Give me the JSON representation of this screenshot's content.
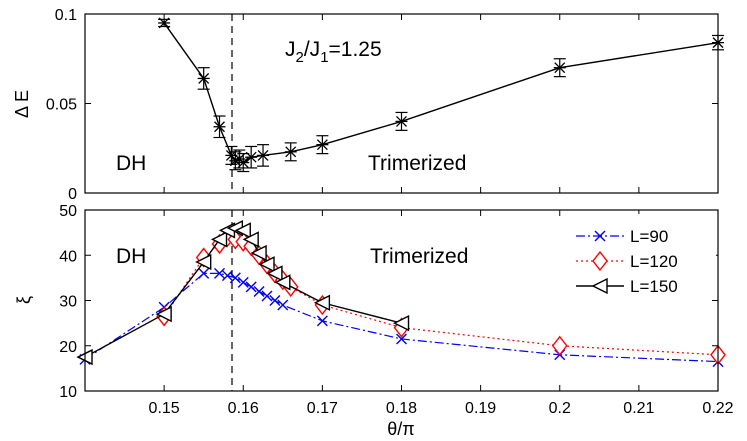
{
  "chart_data": [
    {
      "type": "line",
      "panel": "top",
      "ylabel": "Δ E",
      "ylim": [
        0,
        0.1
      ],
      "xlim": [
        0.14,
        0.22
      ],
      "yticks": [
        0,
        0.05,
        0.1
      ],
      "ytick_labels": [
        "0",
        "0.05",
        "0.1"
      ],
      "annotations": {
        "ratio": "J",
        "ratio_sub1": "2",
        "ratio_mid": "/J",
        "ratio_sub2": "1",
        "ratio_val": "=1.25",
        "left_region": "DH",
        "right_region": "Trimerized"
      },
      "vline_x": 0.159,
      "series": [
        {
          "name": "Delta E",
          "x": [
            0.15,
            0.155,
            0.157,
            0.1585,
            0.159,
            0.1595,
            0.16,
            0.161,
            0.1625,
            0.166,
            0.17,
            0.18,
            0.2,
            0.22
          ],
          "y": [
            0.095,
            0.064,
            0.037,
            0.021,
            0.018,
            0.019,
            0.017,
            0.02,
            0.021,
            0.023,
            0.027,
            0.04,
            0.07,
            0.084
          ],
          "err": [
            0.002,
            0.006,
            0.006,
            0.005,
            0.005,
            0.005,
            0.005,
            0.006,
            0.006,
            0.005,
            0.005,
            0.005,
            0.005,
            0.004
          ]
        }
      ]
    },
    {
      "type": "line",
      "panel": "bottom",
      "xlabel": "θ/π",
      "ylabel": "ξ",
      "xlim": [
        0.14,
        0.22
      ],
      "ylim": [
        10,
        50
      ],
      "xticks": [
        0.15,
        0.16,
        0.17,
        0.18,
        0.19,
        0.2,
        0.21,
        0.22
      ],
      "xtick_labels": [
        "0.15",
        "0.16",
        "0.17",
        "0.18",
        "0.19",
        "0.2",
        "0.21",
        "0.22"
      ],
      "yticks": [
        10,
        20,
        30,
        40,
        50
      ],
      "ytick_labels": [
        "10",
        "20",
        "30",
        "40",
        "50"
      ],
      "annotations": {
        "left_region": "DH",
        "right_region": "Trimerized"
      },
      "vline_x": 0.159,
      "legend_position": "top-right",
      "series": [
        {
          "name": "L=90",
          "color": "#0000ff",
          "x": [
            0.14,
            0.15,
            0.155,
            0.157,
            0.158,
            0.159,
            0.16,
            0.161,
            0.162,
            0.163,
            0.164,
            0.165,
            0.17,
            0.18,
            0.2,
            0.22
          ],
          "y": [
            17,
            28.5,
            36,
            36,
            35.5,
            35,
            34,
            33,
            32,
            31,
            30,
            29,
            25.5,
            21.5,
            18,
            16.5
          ]
        },
        {
          "name": "L=120",
          "color": "#ff0000",
          "x": [
            0.15,
            0.155,
            0.157,
            0.158,
            0.159,
            0.16,
            0.161,
            0.162,
            0.163,
            0.164,
            0.165,
            0.166,
            0.17,
            0.18,
            0.2,
            0.22
          ],
          "y": [
            26.5,
            39.5,
            42.5,
            44,
            43.5,
            43,
            42,
            40,
            38,
            36,
            34.5,
            33,
            29,
            24,
            20,
            18
          ]
        },
        {
          "name": "L=150",
          "color": "#000000",
          "x": [
            0.14,
            0.15,
            0.155,
            0.157,
            0.158,
            0.159,
            0.16,
            0.161,
            0.162,
            0.163,
            0.164,
            0.165,
            0.17,
            0.18
          ],
          "y": [
            17.5,
            27,
            38.5,
            43.5,
            45.5,
            46,
            45.5,
            43.5,
            40.5,
            38,
            36,
            34,
            29.5,
            25
          ]
        }
      ]
    }
  ]
}
